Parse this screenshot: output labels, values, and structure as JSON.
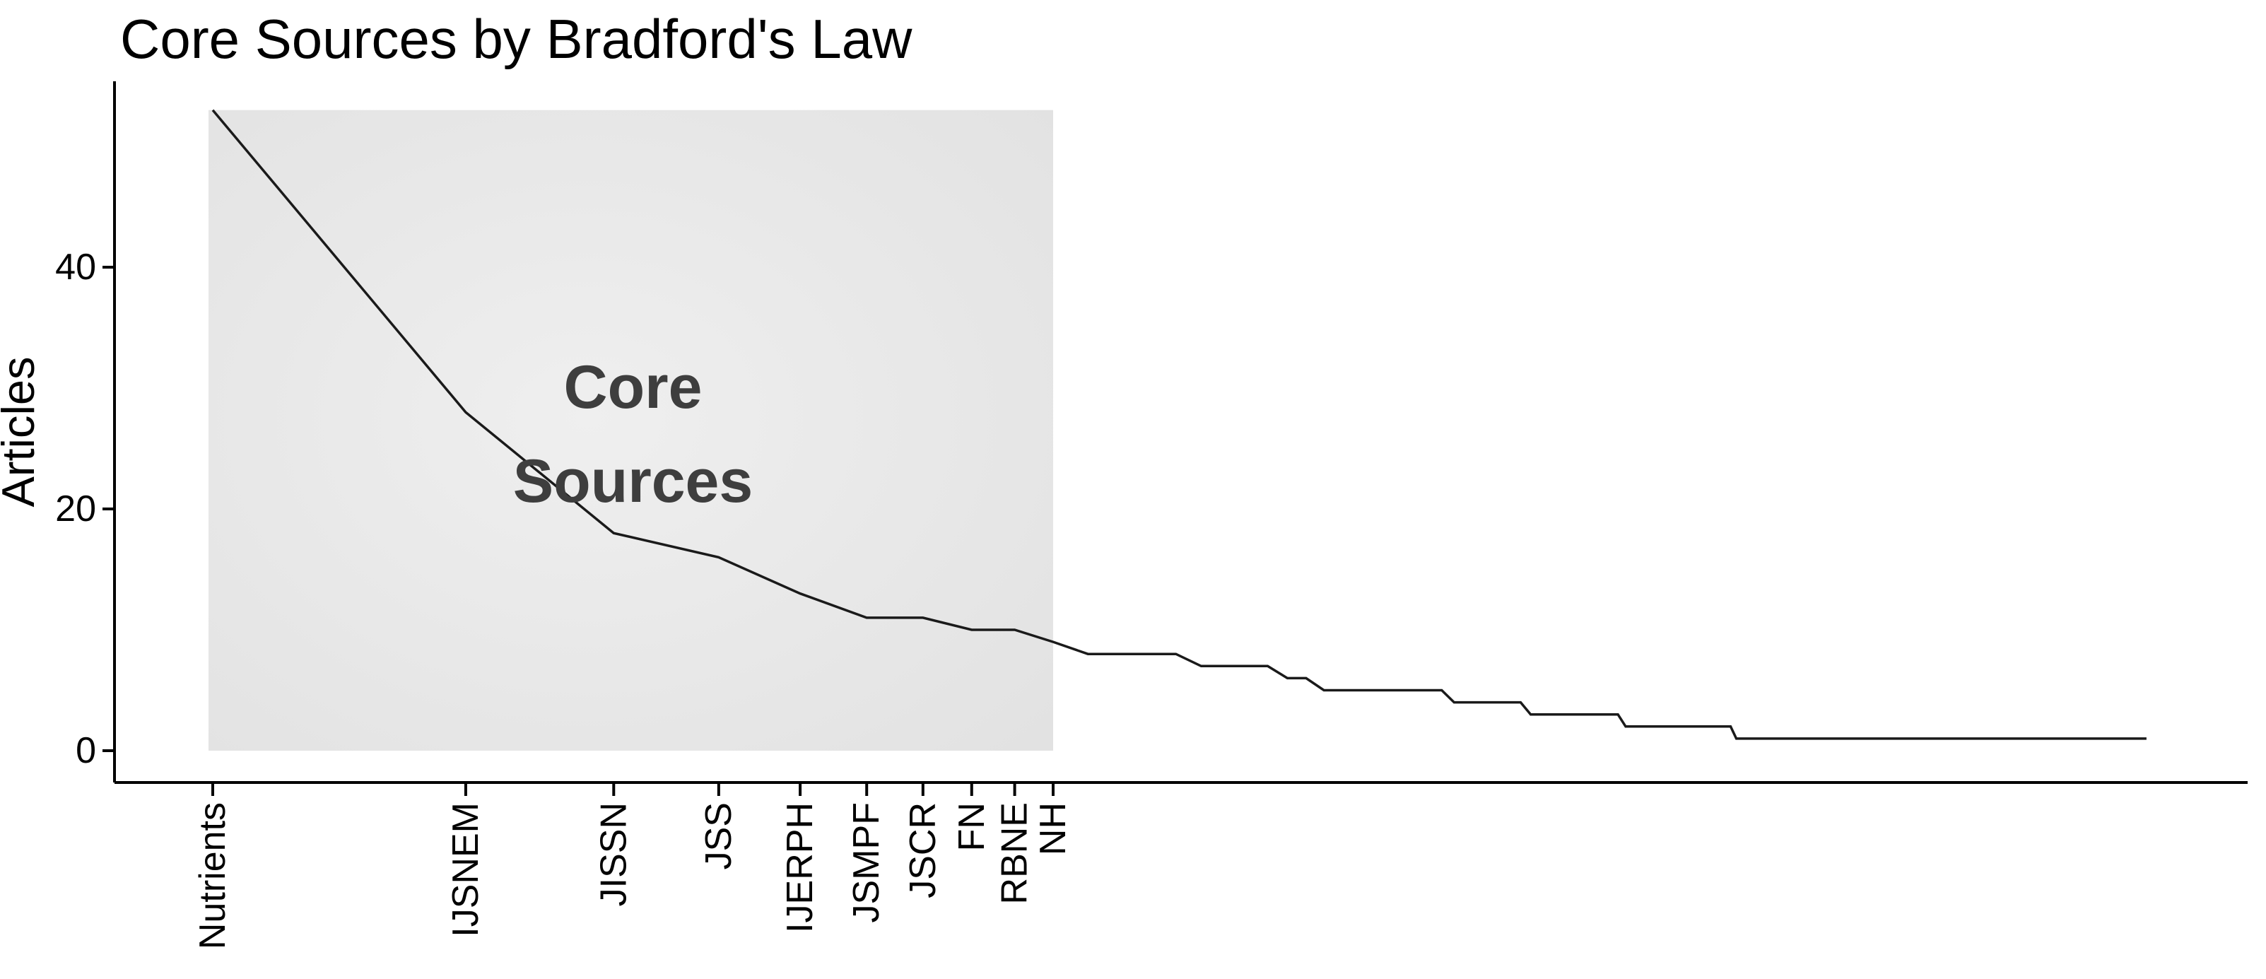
{
  "chart_data": {
    "type": "line",
    "title": "Core Sources by Bradford's Law",
    "xlabel": "",
    "ylabel": "Articles",
    "x_scale": "log10 of source rank",
    "yticks": [
      0,
      20,
      40
    ],
    "ylim": [
      0,
      53
    ],
    "grid": false,
    "legend": "none",
    "labeled_sources": [
      {
        "label": "Nutrients",
        "rank": 1,
        "articles": 53
      },
      {
        "label": "IJSNEM",
        "rank": 2,
        "articles": 28
      },
      {
        "label": "JISSN",
        "rank": 3,
        "articles": 18
      },
      {
        "label": "JSS",
        "rank": 4,
        "articles": 16
      },
      {
        "label": "IJERPH",
        "rank": 5,
        "articles": 13
      },
      {
        "label": "JSMPF",
        "rank": 6,
        "articles": 11
      },
      {
        "label": "JSCR",
        "rank": 7,
        "articles": 11
      },
      {
        "label": "FN",
        "rank": 8,
        "articles": 10
      },
      {
        "label": "RBNE",
        "rank": 9,
        "articles": 10
      },
      {
        "label": "NH",
        "rank": 10,
        "articles": 9
      }
    ],
    "tail_plateaus": [
      {
        "from_rank": 11,
        "to_rank": 14,
        "articles": 8
      },
      {
        "from_rank": 15,
        "to_rank": 18,
        "articles": 7
      },
      {
        "from_rank": 19,
        "to_rank": 20,
        "articles": 6
      },
      {
        "from_rank": 21,
        "to_rank": 29,
        "articles": 5
      },
      {
        "from_rank": 30,
        "to_rank": 36,
        "articles": 4
      },
      {
        "from_rank": 37,
        "to_rank": 47,
        "articles": 3
      },
      {
        "from_rank": 48,
        "to_rank": 64,
        "articles": 2
      },
      {
        "from_rank": 65,
        "to_rank": 200,
        "articles": 1
      }
    ],
    "core_zone": {
      "rank_from": 1,
      "rank_to": 10,
      "label_line1": "Core",
      "label_line2": "Sources",
      "label_color": "#3e3e3e",
      "fill_center": "#efefef",
      "fill_edge": "#e1e1e1"
    },
    "colors": {
      "line": "#1a1a1a",
      "axis": "#000000",
      "text": "#000000"
    }
  }
}
